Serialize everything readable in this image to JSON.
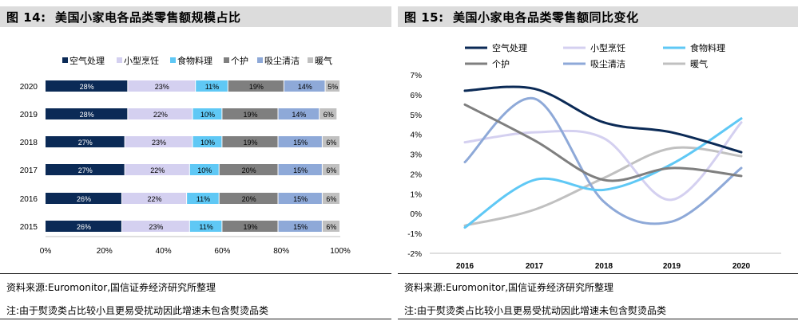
{
  "left": {
    "title": "图 14:  美国小家电各品类零售额规模占比",
    "source": "资料来源:Euromonitor,国信证券经济研究所整理",
    "note": "注:由于熨烫类占比较小且更易受扰动因此增速未包含熨烫品类"
  },
  "right": {
    "title": "图 15:  美国小家电各品类零售额同比变化",
    "source": "资料来源:Euromonitor,国信证券经济研究所整理",
    "note": "注:由于熨烫类占比较小且更易受扰动因此增速未包含熨烫品类"
  },
  "chart_data": [
    {
      "type": "bar",
      "orientation": "horizontal",
      "stacked": true,
      "title": "美国小家电各品类零售额规模占比",
      "categories": [
        "2020",
        "2019",
        "2018",
        "2017",
        "2016",
        "2015"
      ],
      "series": [
        {
          "name": "空气处理",
          "color": "#0b2a56",
          "values": [
            28,
            28,
            27,
            27,
            26,
            26
          ],
          "labels": [
            "28%",
            "28%",
            "27%",
            "27%",
            "26%",
            "26%"
          ]
        },
        {
          "name": "小型烹饪",
          "color": "#d4d0f0",
          "values": [
            23,
            22,
            23,
            22,
            22,
            23
          ],
          "labels": [
            "23%",
            "22%",
            "23%",
            "22%",
            "22%",
            "23%"
          ]
        },
        {
          "name": "食物料理",
          "color": "#5fc8f5",
          "values": [
            11,
            10,
            10,
            10,
            11,
            11
          ],
          "labels": [
            "11%",
            "10%",
            "10%",
            "10%",
            "11%",
            "11%"
          ]
        },
        {
          "name": "个护",
          "color": "#7f7f7f",
          "values": [
            19,
            19,
            19,
            20,
            20,
            19
          ],
          "labels": [
            "19%",
            "19%",
            "19%",
            "20%",
            "20%",
            "19%"
          ]
        },
        {
          "name": "吸尘清洁",
          "color": "#8ea9d8",
          "values": [
            14,
            14,
            15,
            15,
            15,
            15
          ],
          "labels": [
            "14%",
            "14%",
            "15%",
            "15%",
            "15%",
            "15%"
          ]
        },
        {
          "name": "暖气",
          "color": "#c0c0c0",
          "values": [
            5,
            6,
            6,
            6,
            6,
            6
          ],
          "labels": [
            "5%",
            "6%",
            "6%",
            "6%",
            "6%",
            "6%"
          ]
        }
      ],
      "xlim": [
        0,
        100
      ],
      "xticks": [
        "0%",
        "20%",
        "40%",
        "60%",
        "80%",
        "100%"
      ],
      "legend": "top"
    },
    {
      "type": "line",
      "smooth": true,
      "title": "美国小家电各品类零售额同比变化",
      "x": [
        "2016",
        "2017",
        "2018",
        "2019",
        "2020"
      ],
      "series": [
        {
          "name": "空气处理",
          "color": "#0b2a56",
          "values": [
            6.2,
            6.3,
            4.6,
            4.1,
            3.1
          ]
        },
        {
          "name": "小型烹饪",
          "color": "#d4d0f0",
          "values": [
            3.6,
            4.1,
            3.8,
            0.7,
            4.6
          ]
        },
        {
          "name": "食物料理",
          "color": "#5fc8f5",
          "values": [
            -0.7,
            1.7,
            1.2,
            2.5,
            4.8
          ]
        },
        {
          "name": "个护",
          "color": "#7f7f7f",
          "values": [
            5.5,
            3.7,
            1.7,
            2.3,
            1.9
          ]
        },
        {
          "name": "吸尘清洁",
          "color": "#8ea9d8",
          "values": [
            2.6,
            5.8,
            0.6,
            -0.4,
            2.3
          ]
        },
        {
          "name": "暖气",
          "color": "#c0c0c0",
          "values": [
            -0.6,
            0.2,
            1.8,
            3.3,
            2.9
          ]
        }
      ],
      "ylim": [
        -2,
        7
      ],
      "yticks": [
        "-2%",
        "-1%",
        "0%",
        "1%",
        "2%",
        "3%",
        "4%",
        "5%",
        "6%",
        "7%"
      ],
      "legend": "top"
    }
  ]
}
